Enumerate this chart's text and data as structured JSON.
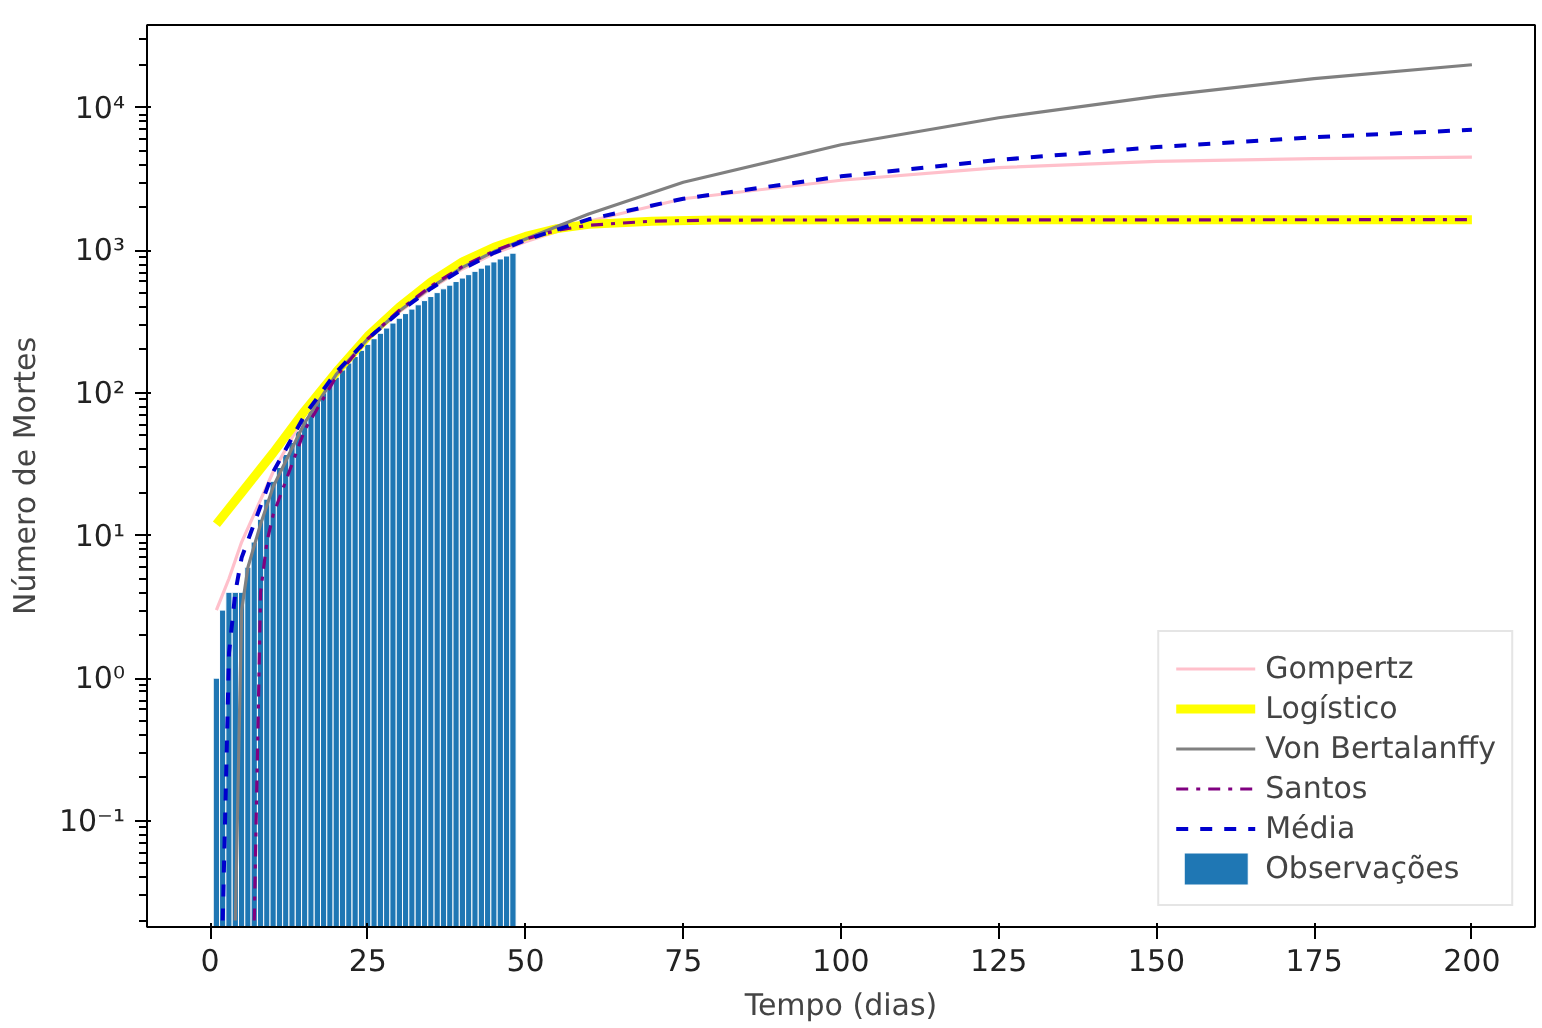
{
  "chart_data": {
    "type": "line",
    "xlabel": "Tempo (dias)",
    "ylabel": "Número de Mortes",
    "log": "y",
    "grid": false,
    "legend": "bottom right",
    "xlim": [
      -10,
      210
    ],
    "xticks": [
      0,
      25,
      50,
      75,
      100,
      125,
      150,
      175,
      200
    ],
    "ylim": [
      0.018,
      38000
    ],
    "yticks": [
      {
        "value": 0.1,
        "label": "10⁻¹"
      },
      {
        "value": 1,
        "label": "10⁰"
      },
      {
        "value": 10,
        "label": "10¹"
      },
      {
        "value": 100,
        "label": "10²"
      },
      {
        "value": 1000,
        "label": "10³"
      },
      {
        "value": 10000,
        "label": "10⁴"
      }
    ],
    "series": [
      {
        "name": "Gompertz",
        "color": "#ffc0cb",
        "line_style": "solid",
        "x": [
          1,
          3,
          5,
          10,
          15,
          20,
          25,
          30,
          35,
          40,
          45,
          50,
          60,
          75,
          100,
          125,
          150,
          175,
          200
        ],
        "values": [
          3,
          5,
          9,
          28,
          70,
          140,
          240,
          370,
          540,
          740,
          950,
          1150,
          1600,
          2300,
          3100,
          3800,
          4200,
          4400,
          4500
        ]
      },
      {
        "name": "Logístico",
        "color": "#ffff00",
        "line_style": "solid",
        "x": [
          1,
          5,
          10,
          15,
          20,
          25,
          30,
          35,
          40,
          45,
          50,
          55,
          60,
          70,
          80,
          100,
          200
        ],
        "values": [
          12,
          20,
          38,
          75,
          140,
          250,
          400,
          600,
          830,
          1050,
          1250,
          1420,
          1520,
          1600,
          1630,
          1640,
          1640
        ]
      },
      {
        "name": "Von Bertalanffy",
        "color": "#808080",
        "line_style": "solid",
        "x": [
          4,
          5,
          6,
          8,
          10,
          15,
          20,
          25,
          30,
          35,
          40,
          45,
          50,
          60,
          75,
          100,
          125,
          150,
          175,
          200
        ],
        "values": [
          0.02,
          3,
          6,
          12,
          22,
          62,
          135,
          240,
          375,
          550,
          760,
          980,
          1200,
          1800,
          3000,
          5500,
          8500,
          12000,
          16000,
          20000
        ]
      },
      {
        "name": "Santos",
        "color": "#800080",
        "line_style": "dashdot",
        "x": [
          7,
          8,
          9,
          10,
          15,
          20,
          25,
          30,
          35,
          40,
          45,
          50,
          55,
          60,
          70,
          80,
          200
        ],
        "values": [
          0.02,
          4,
          9,
          14,
          55,
          130,
          240,
          380,
          560,
          770,
          990,
          1200,
          1380,
          1500,
          1600,
          1630,
          1640
        ]
      },
      {
        "name": "Média",
        "color": "#0000cd",
        "line_style": "dashed",
        "x": [
          2,
          3,
          4,
          5,
          10,
          15,
          20,
          25,
          30,
          35,
          40,
          45,
          50,
          60,
          75,
          100,
          125,
          150,
          175,
          200
        ],
        "values": [
          0.02,
          1.5,
          4,
          7,
          28,
          70,
          140,
          240,
          370,
          540,
          740,
          960,
          1180,
          1650,
          2300,
          3300,
          4300,
          5300,
          6200,
          7000
        ]
      },
      {
        "name": "Observações",
        "type": "bar",
        "color": "#1f77b4",
        "x": [
          1,
          2,
          3,
          4,
          5,
          6,
          7,
          8,
          9,
          10,
          11,
          12,
          13,
          14,
          15,
          16,
          17,
          18,
          19,
          20,
          21,
          22,
          23,
          24,
          25,
          26,
          27,
          28,
          29,
          30,
          31,
          32,
          33,
          34,
          35,
          36,
          37,
          38,
          39,
          40,
          41,
          42,
          43,
          44,
          45,
          46,
          47,
          48
        ],
        "values": [
          1,
          3,
          4,
          4,
          4,
          6,
          9,
          13,
          18,
          24,
          30,
          37,
          45,
          54,
          64,
          75,
          87,
          100,
          114,
          129,
          145,
          162,
          180,
          199,
          219,
          240,
          262,
          285,
          309,
          334,
          360,
          387,
          415,
          444,
          474,
          505,
          537,
          570,
          604,
          639,
          675,
          712,
          750,
          789,
          829,
          870,
          912,
          955
        ]
      }
    ]
  }
}
